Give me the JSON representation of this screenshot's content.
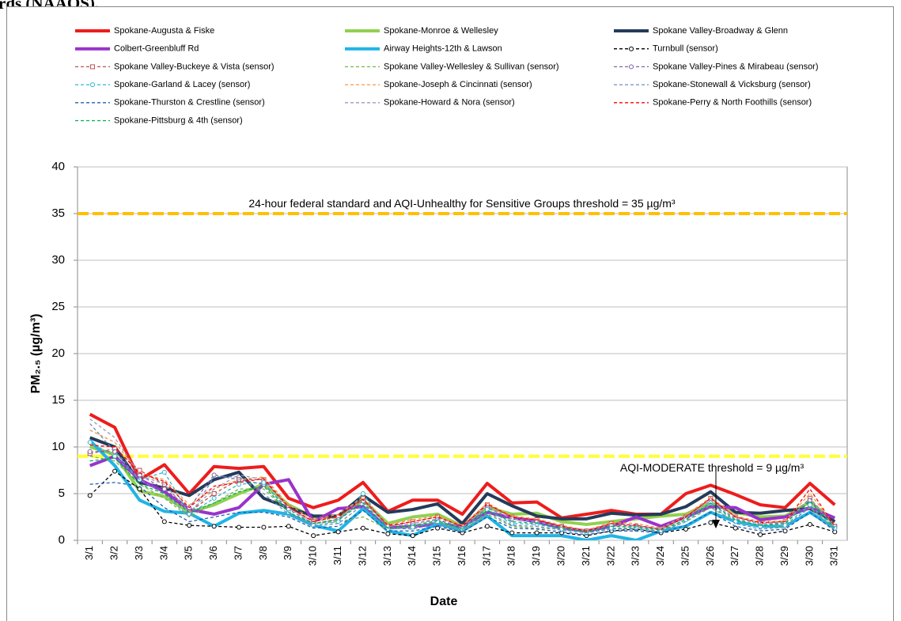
{
  "page_caption": "rds (NAAQS).",
  "chart_data": {
    "type": "line",
    "ylabel": "PM₂.₅ (µg/m³)",
    "xlabel": "Date",
    "ylim": [
      0,
      40
    ],
    "yticks": [
      0,
      5,
      10,
      15,
      20,
      25,
      30,
      35,
      40
    ],
    "grid": true,
    "reference_lines": [
      {
        "value": 35,
        "label": "24-hour federal standard and AQI-Unhealthy for Sensitive Groups threshold = 35 µg/m³",
        "color": "#ffc000"
      },
      {
        "value": 9,
        "label": "AQI-MODERATE  threshold = 9 µg/m³",
        "color": "#ffff33"
      }
    ],
    "categories": [
      "3/1",
      "3/2",
      "3/3",
      "3/4",
      "3/5",
      "3/6",
      "3/7",
      "3/8",
      "3/9",
      "3/10",
      "3/11",
      "3/12",
      "3/13",
      "3/14",
      "3/15",
      "3/16",
      "3/17",
      "3/18",
      "3/19",
      "3/20",
      "3/21",
      "3/22",
      "3/23",
      "3/24",
      "3/25",
      "3/26",
      "3/27",
      "3/28",
      "3/29",
      "3/30",
      "3/31"
    ],
    "series": [
      {
        "name": "Spokane-Augusta & Fiske",
        "color": "#ee1c1c",
        "width": 4,
        "dashed": false,
        "values": [
          13.5,
          12.1,
          6.5,
          8.1,
          5.0,
          7.9,
          7.7,
          7.9,
          4.5,
          3.5,
          4.3,
          6.2,
          3.1,
          4.3,
          4.3,
          2.8,
          6.1,
          4.0,
          4.1,
          2.4,
          2.8,
          3.2,
          2.8,
          2.8,
          5.0,
          5.9,
          4.9,
          3.8,
          3.5,
          6.1,
          3.8
        ]
      },
      {
        "name": "Spokane-Monroe & Wellesley",
        "color": "#92d050",
        "width": 4,
        "dashed": false,
        "values": [
          10.0,
          9.2,
          5.3,
          4.7,
          3.0,
          3.8,
          5.0,
          6.0,
          3.8,
          2.5,
          2.5,
          4.3,
          1.8,
          2.5,
          2.8,
          1.5,
          3.5,
          2.8,
          2.9,
          2.0,
          1.7,
          2.0,
          2.3,
          2.6,
          2.8,
          4.0,
          3.0,
          2.5,
          2.6,
          4.1,
          2.0
        ]
      },
      {
        "name": "Spokane Valley-Broadway & Glenn",
        "color": "#243b5a",
        "width": 4,
        "dashed": false,
        "values": [
          11.0,
          10.0,
          6.2,
          5.6,
          4.8,
          6.5,
          7.3,
          4.5,
          3.5,
          2.6,
          2.6,
          4.8,
          3.0,
          3.3,
          3.9,
          1.8,
          5.0,
          3.7,
          2.6,
          2.3,
          2.3,
          2.9,
          2.7,
          2.8,
          3.6,
          5.2,
          3.0,
          2.9,
          3.2,
          3.4,
          2.0
        ]
      },
      {
        "name": "Colbert-Greenbluff Rd",
        "color": "#9933cc",
        "width": 4,
        "dashed": false,
        "values": [
          8.0,
          9.0,
          6.5,
          5.2,
          3.3,
          2.8,
          3.5,
          6.0,
          6.5,
          2.0,
          3.4,
          3.6,
          1.3,
          1.5,
          1.7,
          1.5,
          3.0,
          2.4,
          2.0,
          1.3,
          1.0,
          1.5,
          2.5,
          1.5,
          2.5,
          3.6,
          3.5,
          2.2,
          2.5,
          3.5,
          2.4
        ]
      },
      {
        "name": "Airway Heights-12th & Lawson",
        "color": "#1fb4e6",
        "width": 4,
        "dashed": false,
        "values": [
          10.7,
          8.0,
          4.3,
          3.1,
          2.9,
          1.5,
          2.9,
          3.2,
          2.8,
          1.6,
          1.0,
          3.4,
          1.0,
          0.5,
          1.8,
          1.0,
          2.6,
          0.5,
          0.5,
          0.5,
          0,
          0.5,
          0,
          1.0,
          1.5,
          3.0,
          2.0,
          1.5,
          1.5,
          3.0,
          1.3
        ]
      },
      {
        "name": "Turnbull (sensor)",
        "color": "#000000",
        "width": 1.3,
        "dashed": true,
        "marker": "circle",
        "values": [
          4.8,
          7.4,
          5.5,
          2.0,
          1.6,
          1.5,
          1.4,
          1.4,
          1.5,
          0.5,
          0.9,
          1.3,
          0.7,
          0.5,
          1.3,
          0.8,
          1.5,
          0.8,
          0.8,
          0.8,
          0.5,
          1.0,
          1.2,
          0.8,
          1.2,
          1.9,
          1.3,
          0.6,
          1.0,
          1.7,
          0.9
        ]
      },
      {
        "name": "Spokane Valley-Buckeye & Vista (sensor)",
        "color": "#c0504d",
        "width": 1.3,
        "dashed": true,
        "marker": "square",
        "values": [
          9.3,
          9.8,
          7.5,
          6.0,
          3.0,
          5.0,
          6.5,
          6.5,
          3.5,
          2.0,
          2.5,
          4.5,
          1.5,
          2.0,
          2.5,
          1.5,
          3.8,
          2.5,
          2.2,
          1.5,
          1.0,
          1.8,
          1.5,
          1.2,
          2.5,
          4.5,
          2.5,
          1.8,
          2.0,
          4.5,
          1.5
        ]
      },
      {
        "name": "Spokane Valley-Wellesley & Sullivan (sensor)",
        "color": "#77b347",
        "width": 1.3,
        "dashed": true,
        "values": [
          9.0,
          8.5,
          6.0,
          4.5,
          2.5,
          4.0,
          5.5,
          5.5,
          3.0,
          1.8,
          2.0,
          2.5,
          1.2,
          1.5,
          2.0,
          1.0,
          2.8,
          1.5,
          1.3,
          1.2,
          0.8,
          1.2,
          1.3,
          1.0,
          2.0,
          3.5,
          2.0,
          1.5,
          1.5,
          3.5,
          1.2
        ]
      },
      {
        "name": "Spokane Valley-Pines & Mirabeau (sensor)",
        "color": "#8064a2",
        "width": 1.3,
        "dashed": true,
        "marker": "circle",
        "values": [
          9.5,
          9.5,
          7.0,
          5.5,
          3.5,
          7.0,
          6.5,
          6.0,
          3.3,
          1.8,
          2.2,
          4.2,
          1.5,
          1.8,
          2.2,
          1.3,
          3.5,
          2.3,
          2.0,
          1.4,
          1.0,
          1.6,
          1.5,
          1.2,
          2.4,
          4.3,
          2.3,
          1.8,
          1.8,
          4.3,
          1.5
        ]
      },
      {
        "name": "Spokane-Garland & Lacey (sensor)",
        "color": "#31b5d0",
        "width": 1.3,
        "dashed": true,
        "marker": "circle",
        "values": [
          10.5,
          9.0,
          6.5,
          7.3,
          2.8,
          4.5,
          6.0,
          6.2,
          3.0,
          1.6,
          2.0,
          5.0,
          1.2,
          1.4,
          2.0,
          1.2,
          3.3,
          1.8,
          1.7,
          1.2,
          0.8,
          1.3,
          1.3,
          1.0,
          2.2,
          4.0,
          2.0,
          1.5,
          1.6,
          3.8,
          1.3
        ]
      },
      {
        "name": "Spokane-Joseph & Cincinnati (sensor)",
        "color": "#f79646",
        "width": 1.3,
        "dashed": true,
        "values": [
          11.8,
          10.5,
          7.2,
          6.5,
          3.8,
          5.5,
          6.5,
          6.8,
          3.8,
          2.2,
          2.8,
          4.6,
          1.7,
          2.2,
          2.6,
          1.6,
          4.0,
          2.6,
          2.3,
          1.6,
          1.1,
          1.9,
          1.8,
          1.3,
          2.7,
          4.6,
          2.6,
          2.0,
          2.1,
          5.0,
          1.6
        ]
      },
      {
        "name": "Spokane-Stonewall & Vicksburg (sensor)",
        "color": "#6b8fc2",
        "width": 1.3,
        "dashed": true,
        "values": [
          12.5,
          9.5,
          6.5,
          5.0,
          2.5,
          6.8,
          6.8,
          5.0,
          2.8,
          1.5,
          1.8,
          3.8,
          1.3,
          1.2,
          1.8,
          1.0,
          3.0,
          1.6,
          1.5,
          1.1,
          0.8,
          1.2,
          1.2,
          0.9,
          2.0,
          3.8,
          1.8,
          1.2,
          1.4,
          3.6,
          1.1
        ]
      },
      {
        "name": "Spokane-Thurston & Crestline (sensor)",
        "color": "#1f5fb0",
        "width": 1.3,
        "dashed": true,
        "values": [
          6.0,
          6.2,
          5.8,
          3.5,
          2.0,
          2.5,
          3.0,
          3.0,
          2.5,
          1.3,
          1.5,
          3.2,
          1.0,
          1.0,
          1.5,
          0.9,
          2.5,
          1.3,
          1.2,
          0.9,
          0.6,
          1.0,
          1.0,
          0.8,
          1.6,
          3.0,
          1.5,
          1.0,
          1.2,
          3.0,
          1.0
        ]
      },
      {
        "name": "Spokane-Howard & Nora (sensor)",
        "color": "#9a9abf",
        "width": 1.3,
        "dashed": true,
        "values": [
          13.0,
          11.0,
          7.0,
          6.0,
          3.0,
          5.5,
          7.0,
          6.5,
          3.5,
          1.8,
          2.3,
          4.3,
          1.5,
          1.8,
          2.3,
          1.4,
          3.6,
          2.3,
          2.0,
          1.4,
          1.0,
          1.7,
          1.6,
          1.2,
          2.4,
          4.3,
          2.3,
          1.8,
          1.9,
          4.5,
          1.4
        ]
      },
      {
        "name": "Spokane-Perry & North Foothills (sensor)",
        "color": "#ff0000",
        "width": 1.3,
        "dashed": true,
        "values": [
          10.2,
          10.0,
          7.2,
          6.3,
          3.5,
          5.8,
          6.2,
          6.6,
          3.6,
          2.0,
          2.6,
          4.4,
          1.6,
          2.0,
          2.5,
          1.5,
          3.9,
          2.5,
          2.2,
          1.5,
          1.0,
          1.8,
          1.6,
          1.2,
          2.5,
          4.5,
          2.5,
          1.9,
          2.0,
          5.5,
          1.5
        ]
      },
      {
        "name": "Spokane-Pittsburg & 4th (sensor)",
        "color": "#00b050",
        "width": 1.3,
        "dashed": true,
        "values": [
          8.5,
          8.8,
          6.0,
          5.0,
          3.0,
          4.0,
          5.2,
          5.8,
          3.0,
          1.8,
          2.2,
          4.0,
          1.3,
          1.6,
          2.1,
          1.2,
          3.2,
          2.0,
          1.8,
          1.3,
          0.9,
          1.5,
          1.4,
          1.1,
          2.2,
          4.0,
          2.2,
          1.6,
          1.8,
          4.2,
          1.3
        ]
      }
    ]
  }
}
